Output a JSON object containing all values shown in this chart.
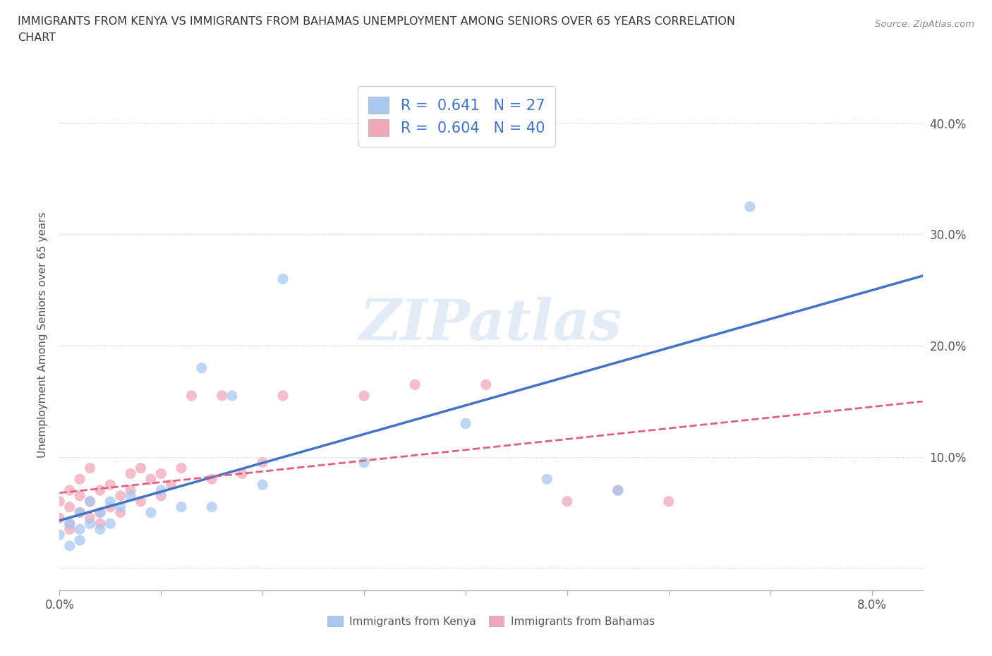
{
  "title_line1": "IMMIGRANTS FROM KENYA VS IMMIGRANTS FROM BAHAMAS UNEMPLOYMENT AMONG SENIORS OVER 65 YEARS CORRELATION",
  "title_line2": "CHART",
  "source": "Source: ZipAtlas.com",
  "ylabel": "Unemployment Among Seniors over 65 years",
  "xlim": [
    0.0,
    0.085
  ],
  "ylim": [
    -0.02,
    0.44
  ],
  "x_ticks": [
    0.0,
    0.01,
    0.02,
    0.03,
    0.04,
    0.05,
    0.06,
    0.07,
    0.08
  ],
  "x_tick_labels": [
    "0.0%",
    "",
    "",
    "",
    "",
    "",
    "",
    "",
    "8.0%"
  ],
  "y_ticks": [
    0.0,
    0.1,
    0.2,
    0.3,
    0.4
  ],
  "y_tick_labels": [
    "",
    "10.0%",
    "20.0%",
    "30.0%",
    "40.0%"
  ],
  "kenya_color": "#a8c8f0",
  "bahamas_color": "#f0a8b8",
  "kenya_line_color": "#4472c4",
  "bahamas_line_color": "#e06080",
  "background_color": "#ffffff",
  "grid_color": "#cccccc",
  "watermark_color": "#d0dff0",
  "legend_kenya_R": "0.641",
  "legend_kenya_N": "27",
  "legend_bahamas_R": "0.604",
  "legend_bahamas_N": "40",
  "legend_value_color": "#4472c4",
  "kenya_x": [
    0.0,
    0.001,
    0.001,
    0.002,
    0.002,
    0.002,
    0.003,
    0.003,
    0.004,
    0.004,
    0.005,
    0.005,
    0.006,
    0.007,
    0.009,
    0.01,
    0.012,
    0.014,
    0.015,
    0.017,
    0.02,
    0.022,
    0.03,
    0.04,
    0.048,
    0.055,
    0.068
  ],
  "kenya_y": [
    0.03,
    0.04,
    0.02,
    0.05,
    0.035,
    0.025,
    0.06,
    0.04,
    0.05,
    0.035,
    0.06,
    0.04,
    0.055,
    0.065,
    0.05,
    0.07,
    0.055,
    0.18,
    0.055,
    0.155,
    0.075,
    0.26,
    0.095,
    0.13,
    0.08,
    0.07,
    0.325
  ],
  "bahamas_x": [
    0.0,
    0.0,
    0.001,
    0.001,
    0.001,
    0.001,
    0.002,
    0.002,
    0.002,
    0.003,
    0.003,
    0.003,
    0.004,
    0.004,
    0.004,
    0.005,
    0.005,
    0.006,
    0.006,
    0.007,
    0.007,
    0.008,
    0.008,
    0.009,
    0.01,
    0.01,
    0.011,
    0.012,
    0.013,
    0.015,
    0.016,
    0.018,
    0.02,
    0.022,
    0.03,
    0.035,
    0.042,
    0.05,
    0.055,
    0.06
  ],
  "bahamas_y": [
    0.045,
    0.06,
    0.04,
    0.055,
    0.07,
    0.035,
    0.05,
    0.065,
    0.08,
    0.045,
    0.06,
    0.09,
    0.05,
    0.07,
    0.04,
    0.055,
    0.075,
    0.065,
    0.05,
    0.07,
    0.085,
    0.06,
    0.09,
    0.08,
    0.065,
    0.085,
    0.075,
    0.09,
    0.155,
    0.08,
    0.155,
    0.085,
    0.095,
    0.155,
    0.155,
    0.165,
    0.165,
    0.06,
    0.07,
    0.06
  ]
}
